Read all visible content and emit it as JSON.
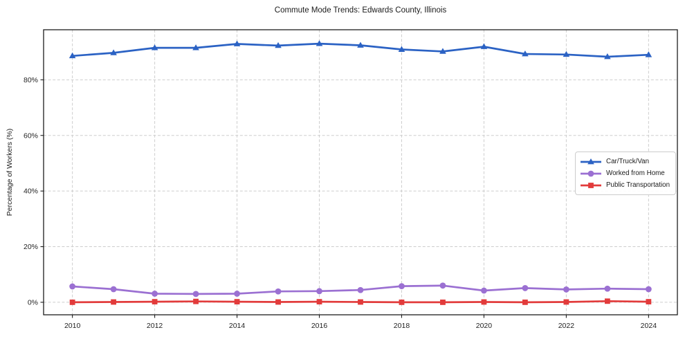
{
  "chart_data": {
    "type": "line",
    "title": "Commute Mode Trends: Edwards County, Illinois",
    "xlabel": "",
    "ylabel": "Percentage of Workers (%)",
    "x": [
      2010,
      2011,
      2012,
      2013,
      2014,
      2015,
      2016,
      2017,
      2018,
      2019,
      2020,
      2021,
      2022,
      2023,
      2024
    ],
    "series": [
      {
        "name": "Car/Truck/Van",
        "color": "#2b62c4",
        "marker": "triangle",
        "values": [
          88.6,
          89.7,
          91.5,
          91.5,
          92.9,
          92.3,
          93.0,
          92.4,
          90.9,
          90.2,
          91.9,
          89.3,
          89.1,
          88.3,
          89.0
        ]
      },
      {
        "name": "Worked from Home",
        "color": "#9b70d2",
        "marker": "circle",
        "values": [
          5.7,
          4.7,
          3.1,
          3.0,
          3.1,
          3.9,
          4.0,
          4.4,
          5.8,
          6.0,
          4.2,
          5.1,
          4.6,
          4.9,
          4.7
        ]
      },
      {
        "name": "Public Transportation",
        "color": "#e23b3b",
        "marker": "square",
        "values": [
          0.0,
          0.1,
          0.2,
          0.3,
          0.2,
          0.1,
          0.2,
          0.1,
          0.0,
          0.0,
          0.1,
          0.0,
          0.1,
          0.4,
          0.2
        ]
      }
    ],
    "xticks": [
      2010,
      2012,
      2014,
      2016,
      2018,
      2020,
      2022,
      2024
    ],
    "xtick_labels": [
      "2010",
      "2012",
      "2014",
      "2016",
      "2018",
      "2020",
      "2022",
      "2024"
    ],
    "yticks": [
      0,
      20,
      40,
      60,
      80
    ],
    "ytick_labels": [
      "0%",
      "20%",
      "40%",
      "60%",
      "80%"
    ],
    "xlim": [
      2009.3,
      2024.7
    ],
    "ylim": [
      -4.5,
      98.0
    ],
    "grid": true,
    "legend_position": "center right",
    "colors": {
      "grid": "#cdcdcd",
      "spine": "#1c1c1c",
      "background": "#ffffff"
    }
  }
}
